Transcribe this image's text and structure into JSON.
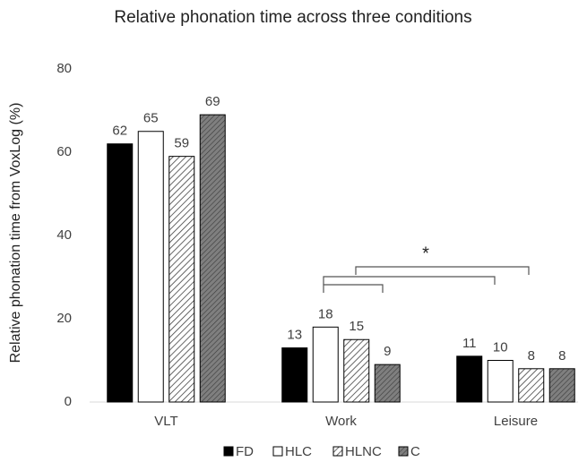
{
  "chart_data": {
    "type": "bar",
    "title": "Relative phonation time across three conditions",
    "y_label": "Relative phonation time from VoxLog (%)",
    "categories": [
      "VLT",
      "Work",
      "Leisure"
    ],
    "series": [
      {
        "name": "FD",
        "color": "#000000",
        "values": [
          62,
          13,
          11
        ]
      },
      {
        "name": "HLC",
        "color": "#ffffff",
        "values": [
          65,
          18,
          10
        ]
      },
      {
        "name": "HLNC",
        "color": "#ffffff",
        "hatch": "#404040",
        "values": [
          59,
          15,
          8
        ]
      },
      {
        "name": "C",
        "color": "#7f7f7f",
        "hatch": "#3a3a3a",
        "values": [
          69,
          9,
          8
        ]
      }
    ],
    "ylim": [
      0,
      80
    ],
    "yticks": [
      0,
      20,
      40,
      60,
      80
    ],
    "grid": false,
    "legend": "bottom",
    "annotations": [
      {
        "text": "*"
      }
    ]
  }
}
